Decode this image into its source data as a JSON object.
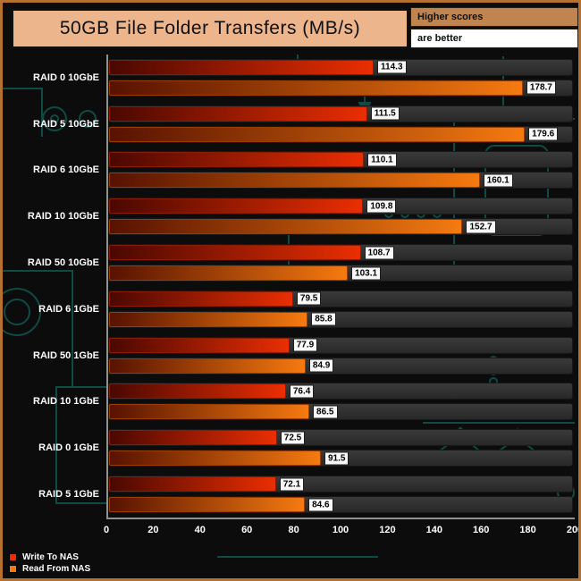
{
  "title": "50GB File Folder Transfers (MB/s)",
  "badges": {
    "higher": "Higher scores",
    "better": "are better"
  },
  "colors": {
    "frame_border": "#b4712f",
    "title_box": "#ecb58c",
    "higher_badge": "#bf8450",
    "write_bar": "#ea2e02",
    "read_bar": "#f57a10",
    "track": "#303030",
    "circuit": "#10564f"
  },
  "chart_data": {
    "type": "bar",
    "orientation": "horizontal",
    "title": "50GB File Folder Transfers (MB/s)",
    "categories": [
      "RAID 0 10GbE",
      "RAID 5 10GbE",
      "RAID 6 10GbE",
      "RAID 10 10GbE",
      "RAID 50 10GbE",
      "RAID 6 1GbE",
      "RAID 50 1GbE",
      "RAID 10 1GbE",
      "RAID 0 1GbE",
      "RAID 5 1GbE"
    ],
    "series": [
      {
        "name": "Write To NAS",
        "values": [
          114.3,
          111.5,
          110.1,
          109.8,
          108.7,
          79.5,
          77.9,
          76.4,
          72.5,
          72.1
        ]
      },
      {
        "name": "Read From NAS",
        "values": [
          178.7,
          179.6,
          160.1,
          152.7,
          103.1,
          85.8,
          84.9,
          86.5,
          91.5,
          84.6
        ]
      }
    ],
    "xlim": [
      0,
      200
    ],
    "xticks": [
      0,
      20,
      40,
      60,
      80,
      100,
      120,
      140,
      160,
      180,
      200
    ],
    "legend_position": "bottom-left",
    "grid": false
  }
}
